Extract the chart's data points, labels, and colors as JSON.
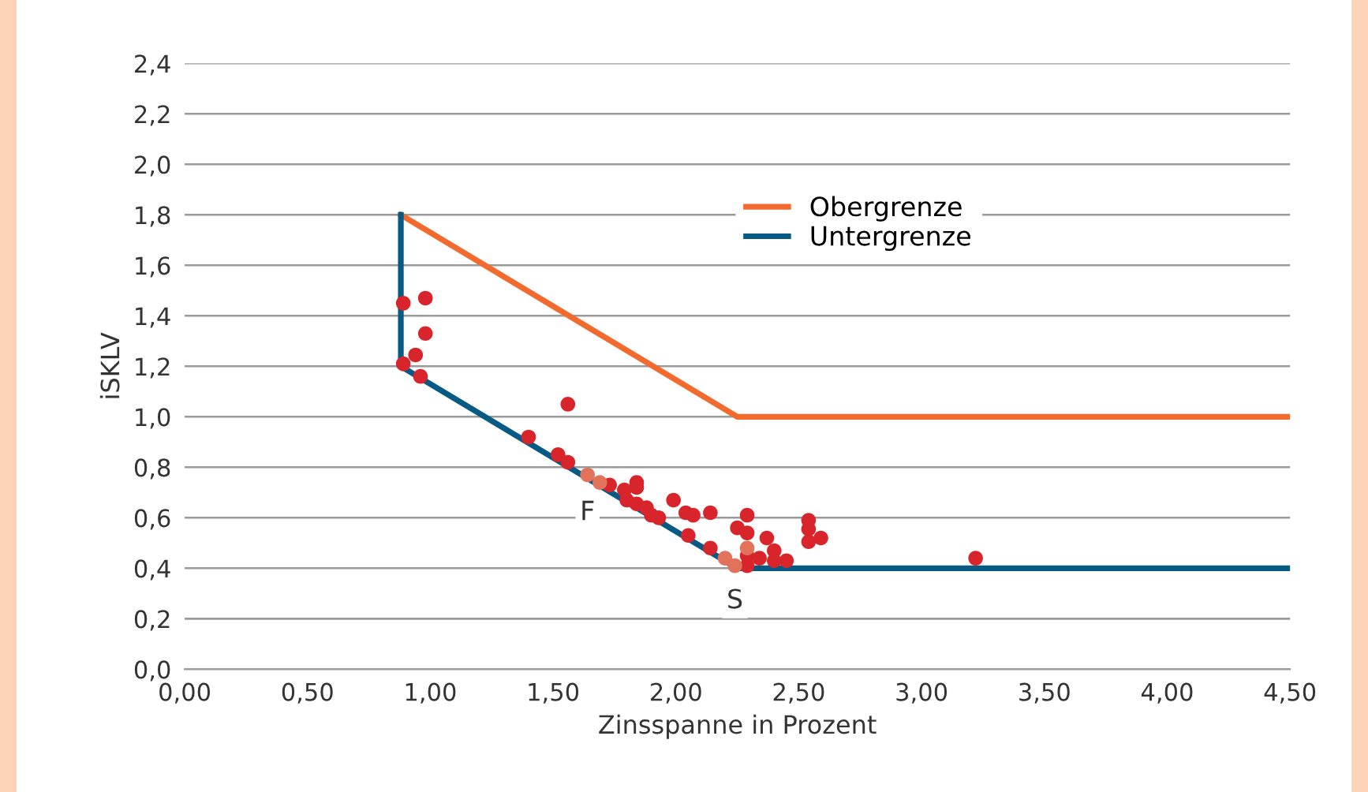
{
  "chart_data": {
    "type": "line",
    "xlabel": "Zinsspanne in Prozent",
    "ylabel": "iSKLV",
    "xlim": [
      0,
      4.5
    ],
    "ylim": [
      0,
      2.4
    ],
    "xticks": [
      {
        "value": 0,
        "label": "0,00"
      },
      {
        "value": 0.5,
        "label": "0,50"
      },
      {
        "value": 1,
        "label": "1,00"
      },
      {
        "value": 1.5,
        "label": "1,50"
      },
      {
        "value": 2,
        "label": "2,00"
      },
      {
        "value": 2.5,
        "label": "2,50"
      },
      {
        "value": 3,
        "label": "3,00"
      },
      {
        "value": 3.5,
        "label": "3,50"
      },
      {
        "value": 4,
        "label": "4,00"
      },
      {
        "value": 4.5,
        "label": "4,50"
      }
    ],
    "yticks": [
      {
        "value": 0,
        "label": "0,0"
      },
      {
        "value": 0.2,
        "label": "0,2"
      },
      {
        "value": 0.4,
        "label": "0,4"
      },
      {
        "value": 0.6,
        "label": "0,6"
      },
      {
        "value": 0.8,
        "label": "0,8"
      },
      {
        "value": 1.0,
        "label": "1,0"
      },
      {
        "value": 1.2,
        "label": "1,2"
      },
      {
        "value": 1.4,
        "label": "1,4"
      },
      {
        "value": 1.6,
        "label": "1,6"
      },
      {
        "value": 1.8,
        "label": "1,8"
      },
      {
        "value": 2.0,
        "label": "2,0"
      },
      {
        "value": 2.2,
        "label": "2,2"
      },
      {
        "value": 2.4,
        "label": "2,4"
      }
    ],
    "grid": "y",
    "legend": "top",
    "series": [
      {
        "name": "Obergrenze",
        "color": "#f26a2e",
        "x": [
          0.88,
          2.25,
          4.5
        ],
        "values": [
          1.8,
          1.0,
          1.0
        ]
      },
      {
        "name": "Untergrenze",
        "color": "#075a84",
        "x": [
          0.88,
          0.88,
          2.25,
          4.5
        ],
        "values": [
          1.8,
          1.2,
          0.4,
          0.4
        ]
      },
      {
        "type": "scatter",
        "color": "#d7252b",
        "marker": "circle",
        "x": [
          0.89,
          0.98,
          0.98,
          0.94,
          0.89,
          0.96,
          1.56,
          1.4,
          1.52,
          1.56,
          1.73,
          1.79,
          1.84,
          1.84,
          1.8,
          1.84,
          1.88,
          1.9,
          1.93,
          1.99,
          2.04,
          2.07,
          2.14,
          2.05,
          2.14,
          2.25,
          2.29,
          2.29,
          2.29,
          2.29,
          2.34,
          2.37,
          2.4,
          2.4,
          2.45,
          2.54,
          2.54,
          2.54,
          2.59,
          3.22
        ],
        "values": [
          1.45,
          1.47,
          1.33,
          1.245,
          1.21,
          1.16,
          1.05,
          0.92,
          0.85,
          0.82,
          0.73,
          0.71,
          0.74,
          0.72,
          0.67,
          0.655,
          0.64,
          0.61,
          0.6,
          0.67,
          0.62,
          0.61,
          0.62,
          0.53,
          0.48,
          0.56,
          0.61,
          0.54,
          0.45,
          0.41,
          0.44,
          0.52,
          0.47,
          0.43,
          0.43,
          0.59,
          0.555,
          0.505,
          0.52,
          0.44
        ]
      },
      {
        "type": "scatter",
        "color": "#e2735a",
        "marker": "circle",
        "x": [
          1.64,
          1.69,
          2.2,
          2.24,
          2.29
        ],
        "values": [
          0.77,
          0.74,
          0.44,
          0.41,
          0.48
        ]
      }
    ],
    "annotations": [
      {
        "text": "F",
        "x": 1.64,
        "y": 0.62
      },
      {
        "text": "S",
        "x": 2.24,
        "y": 0.27
      }
    ]
  }
}
